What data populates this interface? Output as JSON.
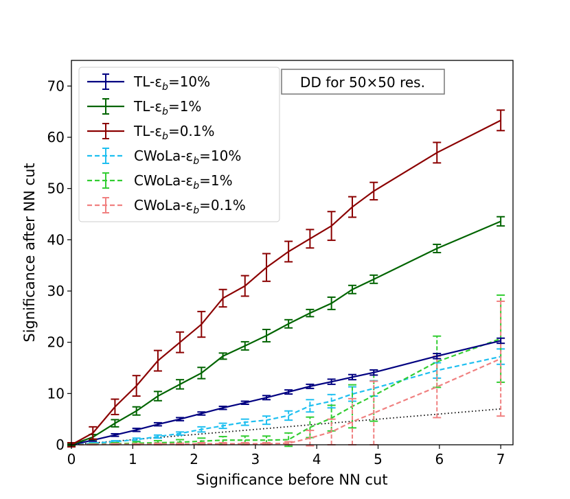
{
  "chart_data": {
    "type": "line",
    "xlabel": "Significance before NN cut",
    "ylabel": "Significance after NN cut",
    "xlim": [
      0,
      7.2
    ],
    "ylim": [
      0,
      75
    ],
    "xticks": [
      0,
      1,
      2,
      3,
      4,
      5,
      6,
      7
    ],
    "yticks": [
      0,
      10,
      20,
      30,
      40,
      50,
      60,
      70
    ],
    "annotation": "DD for 50×50 res.",
    "legend_position": "upper-left",
    "reference_line": {
      "name": "y = x",
      "x": [
        0,
        7
      ],
      "y": [
        0,
        7
      ],
      "style": "dotted",
      "color": "#000000"
    },
    "series": [
      {
        "name": "TL-εb=10%",
        "legend_prefix": "TL-",
        "legend_suffix": "=10%",
        "color": "#000080",
        "style": "solid",
        "x": [
          0,
          0.35,
          0.71,
          1.06,
          1.41,
          1.77,
          2.12,
          2.47,
          2.83,
          3.18,
          3.54,
          3.89,
          4.24,
          4.58,
          4.93,
          5.96,
          7.0
        ],
        "y": [
          0,
          0.9,
          1.9,
          2.9,
          4.0,
          5.0,
          6.1,
          7.2,
          8.2,
          9.2,
          10.3,
          11.4,
          12.3,
          13.2,
          14.1,
          17.3,
          20.3
        ],
        "err": [
          0.1,
          0.2,
          0.25,
          0.3,
          0.3,
          0.3,
          0.3,
          0.3,
          0.3,
          0.4,
          0.4,
          0.4,
          0.5,
          0.5,
          0.5,
          0.5,
          0.5
        ]
      },
      {
        "name": "TL-εb=1%",
        "legend_prefix": "TL-",
        "legend_suffix": "=1%",
        "color": "#006400",
        "style": "solid",
        "x": [
          0,
          0.35,
          0.71,
          1.06,
          1.41,
          1.77,
          2.12,
          2.47,
          2.83,
          3.18,
          3.54,
          3.89,
          4.24,
          4.58,
          4.93,
          5.96,
          7.0
        ],
        "y": [
          0,
          1.5,
          4.2,
          6.6,
          9.5,
          11.8,
          14.0,
          17.3,
          19.3,
          21.3,
          23.6,
          25.7,
          27.6,
          30.3,
          32.3,
          38.3,
          43.6
        ],
        "err": [
          0.2,
          0.5,
          0.7,
          0.8,
          0.9,
          0.9,
          1.1,
          0.6,
          0.8,
          1.2,
          0.8,
          0.7,
          1.2,
          0.8,
          0.8,
          0.8,
          0.9
        ]
      },
      {
        "name": "TL-εb=0.1%",
        "legend_prefix": "TL-",
        "legend_suffix": "=0.1%",
        "color": "#8B0000",
        "style": "solid",
        "x": [
          0,
          0.35,
          0.71,
          1.06,
          1.41,
          1.77,
          2.12,
          2.47,
          2.83,
          3.18,
          3.54,
          3.89,
          4.24,
          4.58,
          4.93,
          5.96,
          7.0
        ],
        "y": [
          0,
          2.3,
          7.4,
          11.5,
          16.4,
          20.0,
          23.5,
          28.6,
          31.0,
          34.6,
          37.7,
          40.2,
          42.7,
          46.4,
          49.5,
          57.0,
          63.3
        ],
        "err": [
          0.4,
          1.2,
          1.5,
          2.0,
          2.0,
          2.0,
          2.5,
          1.7,
          2.0,
          2.7,
          2.0,
          1.8,
          2.8,
          2.0,
          1.7,
          2.0,
          2.0
        ]
      },
      {
        "name": "CWoLa-εb=10%",
        "legend_prefix": "CWoLa-",
        "legend_suffix": "=10%",
        "color": "#1EBFF0",
        "style": "dashed",
        "x": [
          0,
          0.35,
          0.71,
          1.06,
          1.41,
          1.77,
          2.12,
          2.47,
          2.83,
          3.18,
          3.54,
          3.89,
          4.24,
          4.58,
          4.93,
          5.96,
          7.0
        ],
        "y": [
          0,
          0.3,
          0.6,
          1.0,
          1.6,
          2.2,
          3.0,
          3.7,
          4.4,
          4.8,
          5.7,
          7.6,
          8.5,
          9.9,
          11.0,
          14.5,
          17.2
        ],
        "err": [
          0.05,
          0.1,
          0.2,
          0.3,
          0.3,
          0.3,
          0.5,
          0.5,
          0.6,
          0.8,
          0.9,
          1.2,
          1.3,
          1.4,
          1.5,
          1.5,
          1.5
        ]
      },
      {
        "name": "CWoLa-εb=1%",
        "legend_prefix": "CWoLa-",
        "legend_suffix": "=1%",
        "color": "#32CD32",
        "style": "dashed",
        "x": [
          0,
          0.35,
          0.71,
          1.06,
          1.41,
          1.77,
          2.12,
          2.47,
          2.83,
          3.18,
          3.54,
          3.89,
          4.24,
          4.58,
          4.93,
          5.96,
          7.0
        ],
        "y": [
          0,
          0.1,
          0.2,
          0.3,
          0.4,
          0.5,
          0.7,
          0.9,
          0.9,
          0.9,
          1.0,
          3.4,
          5.2,
          7.5,
          9.6,
          16.2,
          20.7
        ],
        "err": [
          0.05,
          0.1,
          0.2,
          0.3,
          0.4,
          0.5,
          0.6,
          0.7,
          0.8,
          0.8,
          1.3,
          2.0,
          2.5,
          4.2,
          5.0,
          5.0,
          8.5
        ]
      },
      {
        "name": "CWoLa-εb=0.1%",
        "legend_prefix": "CWoLa-",
        "legend_suffix": "=0.1%",
        "color": "#F08080",
        "style": "dashed",
        "x": [
          0,
          0.35,
          0.71,
          1.06,
          1.41,
          1.77,
          2.12,
          2.47,
          2.83,
          3.18,
          3.54,
          3.89,
          4.24,
          4.58,
          4.93,
          5.96,
          7.0
        ],
        "y": [
          0,
          0.05,
          0.1,
          0.1,
          0.15,
          0.15,
          0.2,
          0.2,
          0.2,
          0.2,
          0.3,
          1.3,
          2.5,
          4.5,
          6.2,
          11.3,
          16.8
        ],
        "err": [
          0.02,
          0.05,
          0.1,
          0.1,
          0.15,
          0.15,
          0.2,
          0.2,
          0.2,
          0.2,
          0.3,
          1.5,
          2.5,
          4.5,
          6.2,
          6.0,
          11.2
        ]
      }
    ]
  }
}
